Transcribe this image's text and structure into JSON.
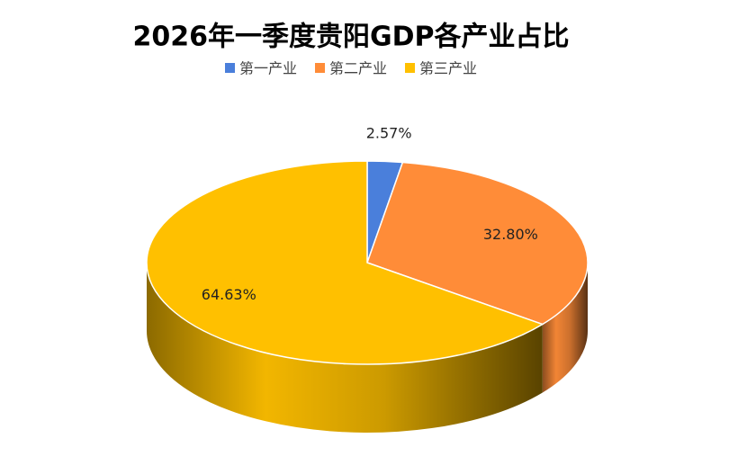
{
  "chart_data": {
    "type": "pie",
    "title": "2026年一季度贵阳GDP各产业占比",
    "categories": [
      "第一产业",
      "第二产业",
      "第三产业"
    ],
    "values": [
      2.57,
      32.8,
      64.63
    ],
    "value_labels": [
      "2.57%",
      "32.80%",
      "64.63%"
    ],
    "colors": [
      "#4a7fdb",
      "#ff8c38",
      "#ffc000"
    ],
    "legend": "top"
  }
}
